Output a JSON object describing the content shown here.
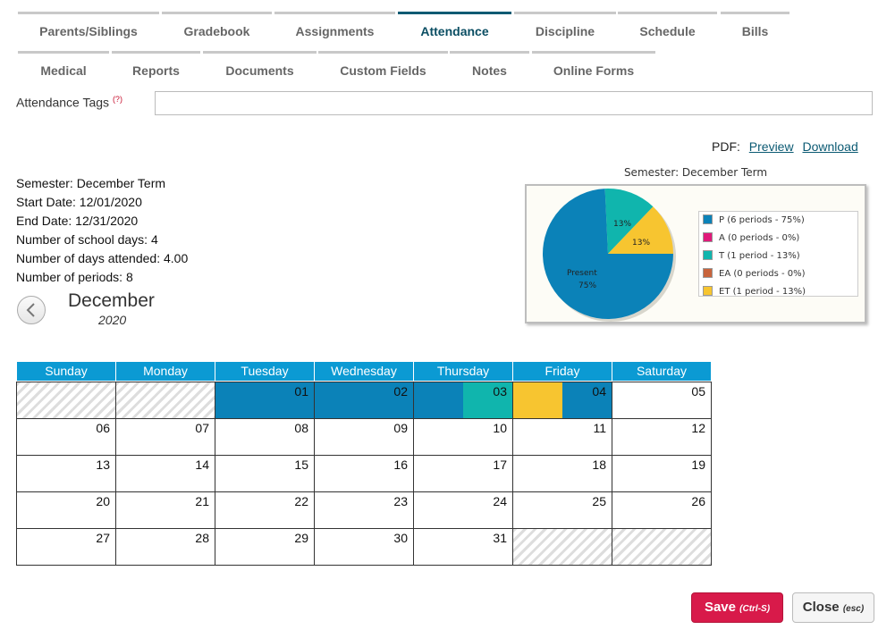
{
  "tabs_row1": [
    "Parents/Siblings",
    "Gradebook",
    "Assignments",
    "Attendance",
    "Discipline",
    "Schedule",
    "Bills"
  ],
  "tabs_row2": [
    "Medical",
    "Reports",
    "Documents",
    "Custom Fields",
    "Notes",
    "Online Forms"
  ],
  "active_tab": "Attendance",
  "attendance_tags": {
    "label": "Attendance Tags",
    "help": "(?)",
    "value": ""
  },
  "pdf": {
    "label": "PDF:",
    "preview": "Preview",
    "download": "Download"
  },
  "summary": {
    "semester": "Semester: December Term",
    "start_date": "Start Date: 12/01/2020",
    "end_date": "End Date: 12/31/2020",
    "school_days": "Number of school days: 4",
    "days_attended": "Number of days attended: 4.00",
    "periods": "Number of periods: 8"
  },
  "calendar_header": {
    "month": "December",
    "year": "2020"
  },
  "chart_data": {
    "type": "pie",
    "title": "Semester: December Term",
    "slices": [
      {
        "code": "P",
        "label": "Present",
        "value": 75,
        "periods": 6,
        "color": "#0b82b8",
        "legend": "P (6 periods - 75%)"
      },
      {
        "code": "A",
        "value": 0,
        "periods": 0,
        "color": "#e0197a",
        "legend": "A (0 periods - 0%)"
      },
      {
        "code": "T",
        "value": 13,
        "periods": 1,
        "color": "#10b5ad",
        "legend": "T (1 period - 13%)"
      },
      {
        "code": "EA",
        "value": 0,
        "periods": 0,
        "color": "#c8643c",
        "legend": "EA (0 periods - 0%)"
      },
      {
        "code": "ET",
        "value": 13,
        "periods": 1,
        "color": "#f7c530",
        "legend": "ET (1 period - 13%)"
      }
    ],
    "data_labels": {
      "present": "Present",
      "present_pct": "75%",
      "t_pct": "13%",
      "et_pct": "13%"
    }
  },
  "weekdays": [
    "Sunday",
    "Monday",
    "Tuesday",
    "Wednesday",
    "Thursday",
    "Friday",
    "Saturday"
  ],
  "weeks": [
    [
      "",
      "",
      "01",
      "02",
      "03",
      "04",
      "05"
    ],
    [
      "06",
      "07",
      "08",
      "09",
      "10",
      "11",
      "12"
    ],
    [
      "13",
      "14",
      "15",
      "16",
      "17",
      "18",
      "19"
    ],
    [
      "20",
      "21",
      "22",
      "23",
      "24",
      "25",
      "26"
    ],
    [
      "27",
      "28",
      "29",
      "30",
      "31",
      "",
      ""
    ]
  ],
  "attendance_periods": {
    "01": [
      "P",
      "P"
    ],
    "02": [
      "P",
      "P"
    ],
    "03": [
      "P",
      "T"
    ],
    "04": [
      "ET",
      "P"
    ]
  },
  "colors": {
    "P": "#0b82b8",
    "T": "#10b5ad",
    "ET": "#f7c530",
    "header": "#0b9ad3",
    "save": "#d81a4a"
  },
  "buttons": {
    "save": "Save",
    "save_hint": "(Ctrl-S)",
    "close": "Close",
    "close_hint": "(esc)"
  }
}
